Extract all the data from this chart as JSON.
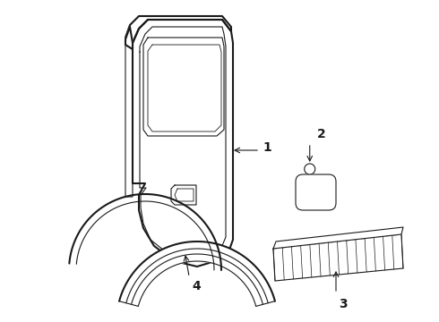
{
  "background_color": "#ffffff",
  "line_color": "#1a1a1a",
  "fig_width": 4.9,
  "fig_height": 3.6,
  "dpi": 100,
  "label_fontsize": 10,
  "label_fontweight": "bold",
  "lw_outer": 1.5,
  "lw_inner": 0.8,
  "lw_detail": 0.6
}
